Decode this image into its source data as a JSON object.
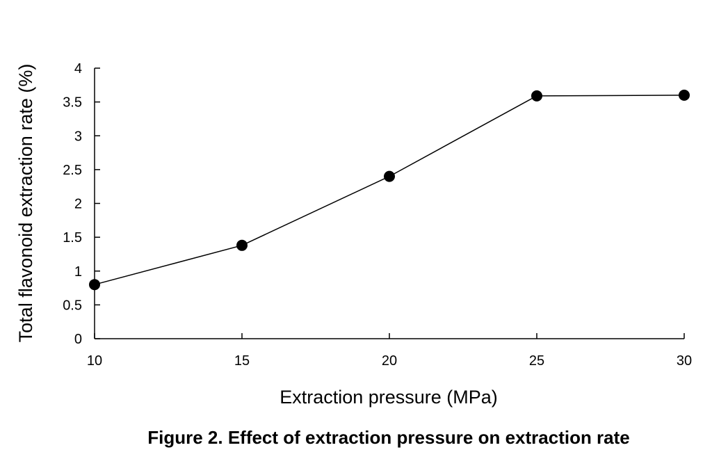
{
  "chart_data": {
    "type": "line",
    "caption": "Figure 2. Effect of extraction pressure on extraction rate",
    "xlabel": "Extraction pressure (MPa)",
    "ylabel": "Total flavonoid extraction rate (%)",
    "x": [
      10,
      15,
      20,
      25,
      30
    ],
    "series": [
      {
        "values": [
          0.8,
          1.38,
          2.4,
          3.59,
          3.6
        ]
      }
    ],
    "xlim": [
      10,
      30
    ],
    "ylim": [
      0,
      4
    ],
    "x_ticks": [
      10,
      15,
      20,
      25,
      30
    ],
    "y_ticks": [
      0,
      0.5,
      1,
      1.5,
      2,
      2.5,
      3,
      3.5,
      4
    ],
    "x_tick_labels": [
      "10",
      "15",
      "20",
      "25",
      "30"
    ],
    "y_tick_labels": [
      "0",
      "0.5",
      "1",
      "1.5",
      "2",
      "2.5",
      "3",
      "3.5",
      "4"
    ],
    "grid": false,
    "legend": "none",
    "marker": "filled-circle",
    "line_color": "#000000",
    "marker_color": "#000000"
  }
}
